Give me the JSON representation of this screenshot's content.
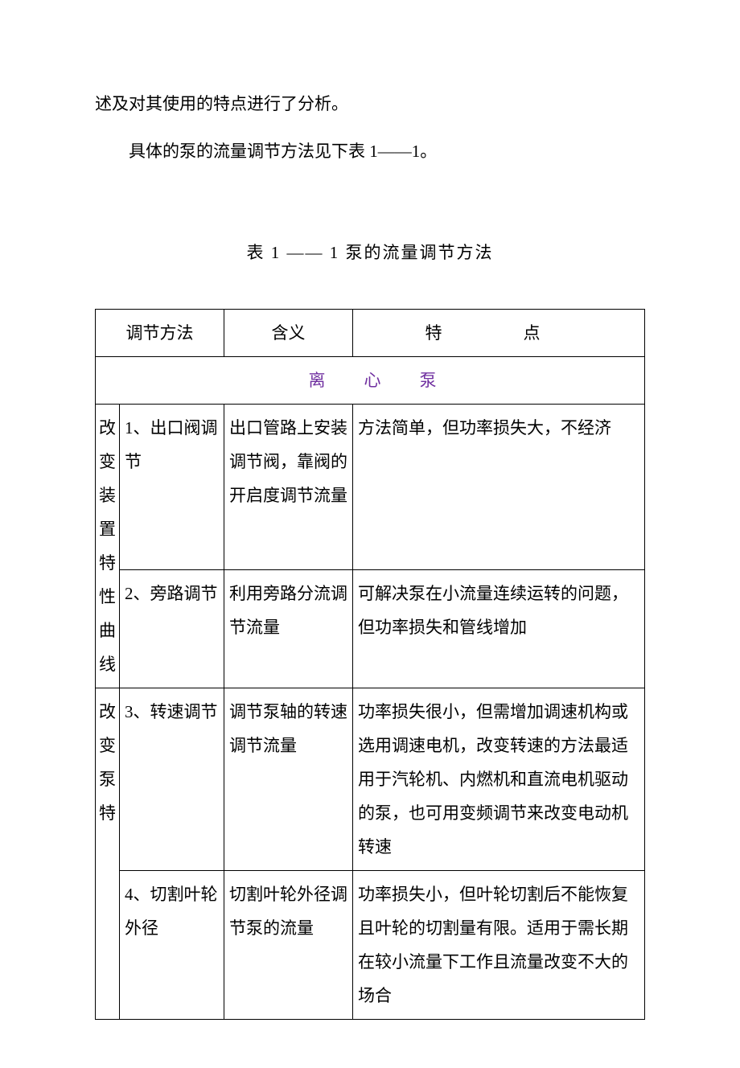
{
  "intro": {
    "line1": "述及对其使用的特点进行了分析。",
    "line2": "具体的泵的流量调节方法见下表 1——1。"
  },
  "caption": "表 1 —— 1 泵的流量调节方法",
  "accent_color": "#7030a0",
  "border_color": "#000000",
  "table": {
    "headers": {
      "method": "调节方法",
      "meaning": "含义",
      "feature": "特　点"
    },
    "section_label": "离心泵",
    "vgroup1": "改变装置特性曲线",
    "vgroup2": "改变泵特",
    "rows": [
      {
        "method": "1、出口阀调节",
        "meaning": "出口管路上安装调节阀，靠阀的开启度调节流量",
        "feature": "方法简单，但功率损失大，不经济"
      },
      {
        "method": "2、旁路调节",
        "meaning": "利用旁路分流调节流量",
        "feature": "可解决泵在小流量连续运转的问题，但功率损失和管线增加"
      },
      {
        "method": "3、转速调节",
        "meaning": "调节泵轴的转速调节流量",
        "feature": "功率损失很小，但需增加调速机构或选用调速电机，改变转速的方法最适用于汽轮机、内燃机和直流电机驱动的泵，也可用变频调节来改变电动机转速"
      },
      {
        "method": "4、切割叶轮外径",
        "meaning": "切割叶轮外径调节泵的流量",
        "feature": "功率损失小，但叶轮切割后不能恢复且叶轮的切割量有限。适用于需长期在较小流量下工作且流量改变不大的场合"
      }
    ]
  }
}
